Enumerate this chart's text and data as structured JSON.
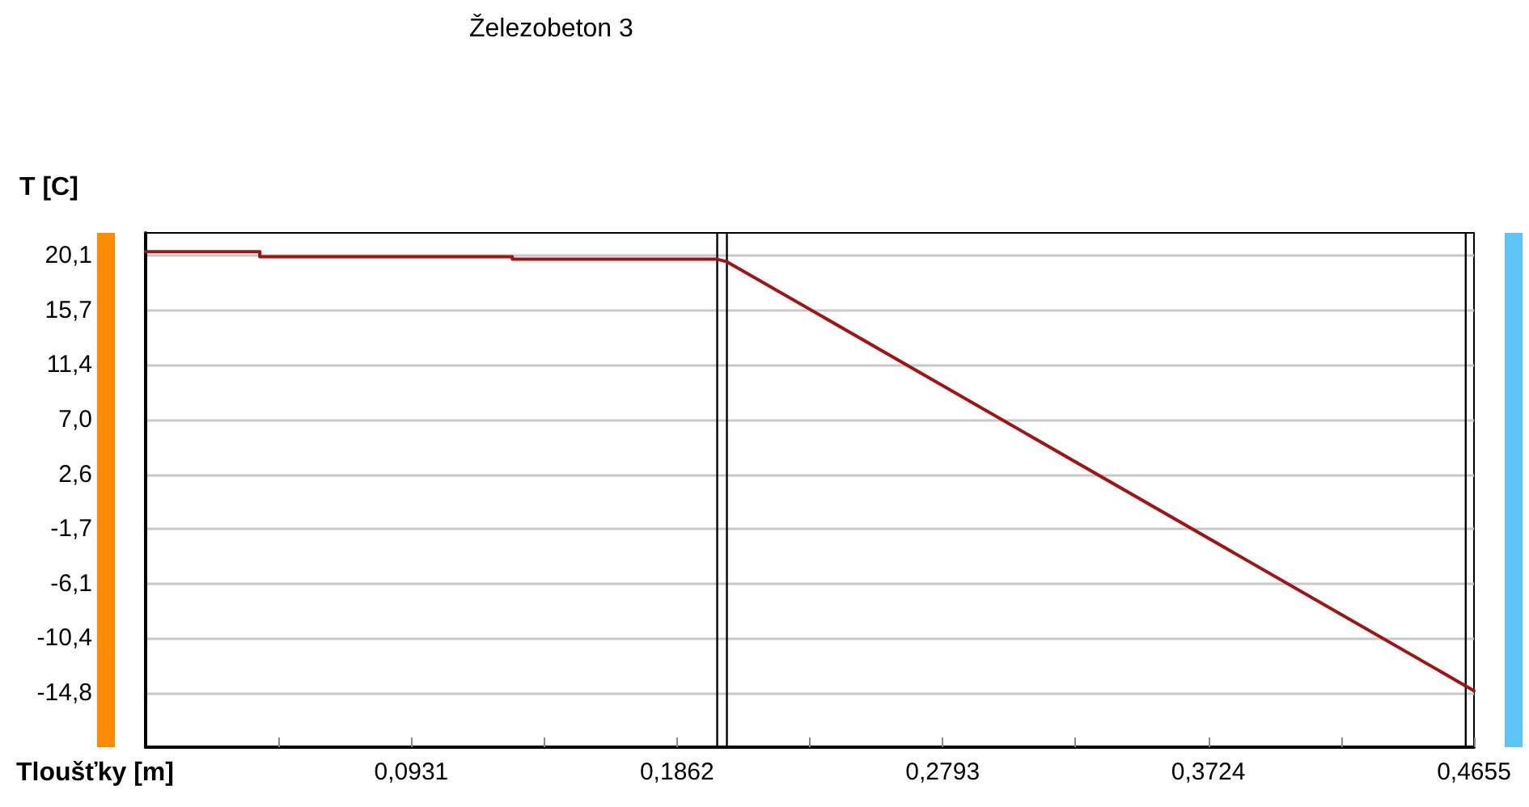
{
  "chart_data": {
    "type": "line",
    "xlabel": "Tloušťky [m]",
    "ylabel": "T [C]",
    "annotations": [
      "Železobeton 3"
    ],
    "x": [
      0,
      0.04,
      0.04,
      0.1285,
      0.1285,
      0.2003,
      0.2037,
      0.4655
    ],
    "series": [
      {
        "color": "#a01414",
        "values": [
          20.4,
          20.4,
          20.0,
          20.0,
          19.8,
          19.8,
          19.6,
          -14.6
        ]
      }
    ],
    "xlim": [
      0,
      0.4655
    ],
    "xticks": [
      {
        "value": 0.04655,
        "label": null
      },
      {
        "value": 0.0931,
        "label": "0,0931"
      },
      {
        "value": 0.13965,
        "label": null
      },
      {
        "value": 0.1862,
        "label": "0,1862"
      },
      {
        "value": 0.23275,
        "label": null
      },
      {
        "value": 0.2793,
        "label": "0,2793"
      },
      {
        "value": 0.32585,
        "label": null
      },
      {
        "value": 0.3724,
        "label": "0,3724"
      },
      {
        "value": 0.41895,
        "label": null
      },
      {
        "value": 0.4655,
        "label": "0,4655"
      }
    ],
    "ylim": [
      -19.1,
      21.9
    ],
    "yticks": [
      {
        "value": -14.8,
        "label": "-14,8"
      },
      {
        "value": -10.4,
        "label": "-10,4"
      },
      {
        "value": -6.1,
        "label": "-6,1"
      },
      {
        "value": -1.7,
        "label": "-1,7"
      },
      {
        "value": 2.6,
        "label": "2,6"
      },
      {
        "value": 7.0,
        "label": "7,0"
      },
      {
        "value": 11.4,
        "label": "11,4"
      },
      {
        "value": 15.7,
        "label": "15,7"
      },
      {
        "value": 20.1,
        "label": "20,1"
      }
    ],
    "ref_lines": [
      {
        "axis": "x",
        "value": 0.2003,
        "color": "#000000"
      },
      {
        "axis": "x",
        "value": 0.2037,
        "color": "#000000"
      },
      {
        "axis": "x",
        "value": 0.4626,
        "color": "#000000"
      }
    ],
    "grid": "y",
    "marker": "none",
    "line_style": "solid"
  }
}
